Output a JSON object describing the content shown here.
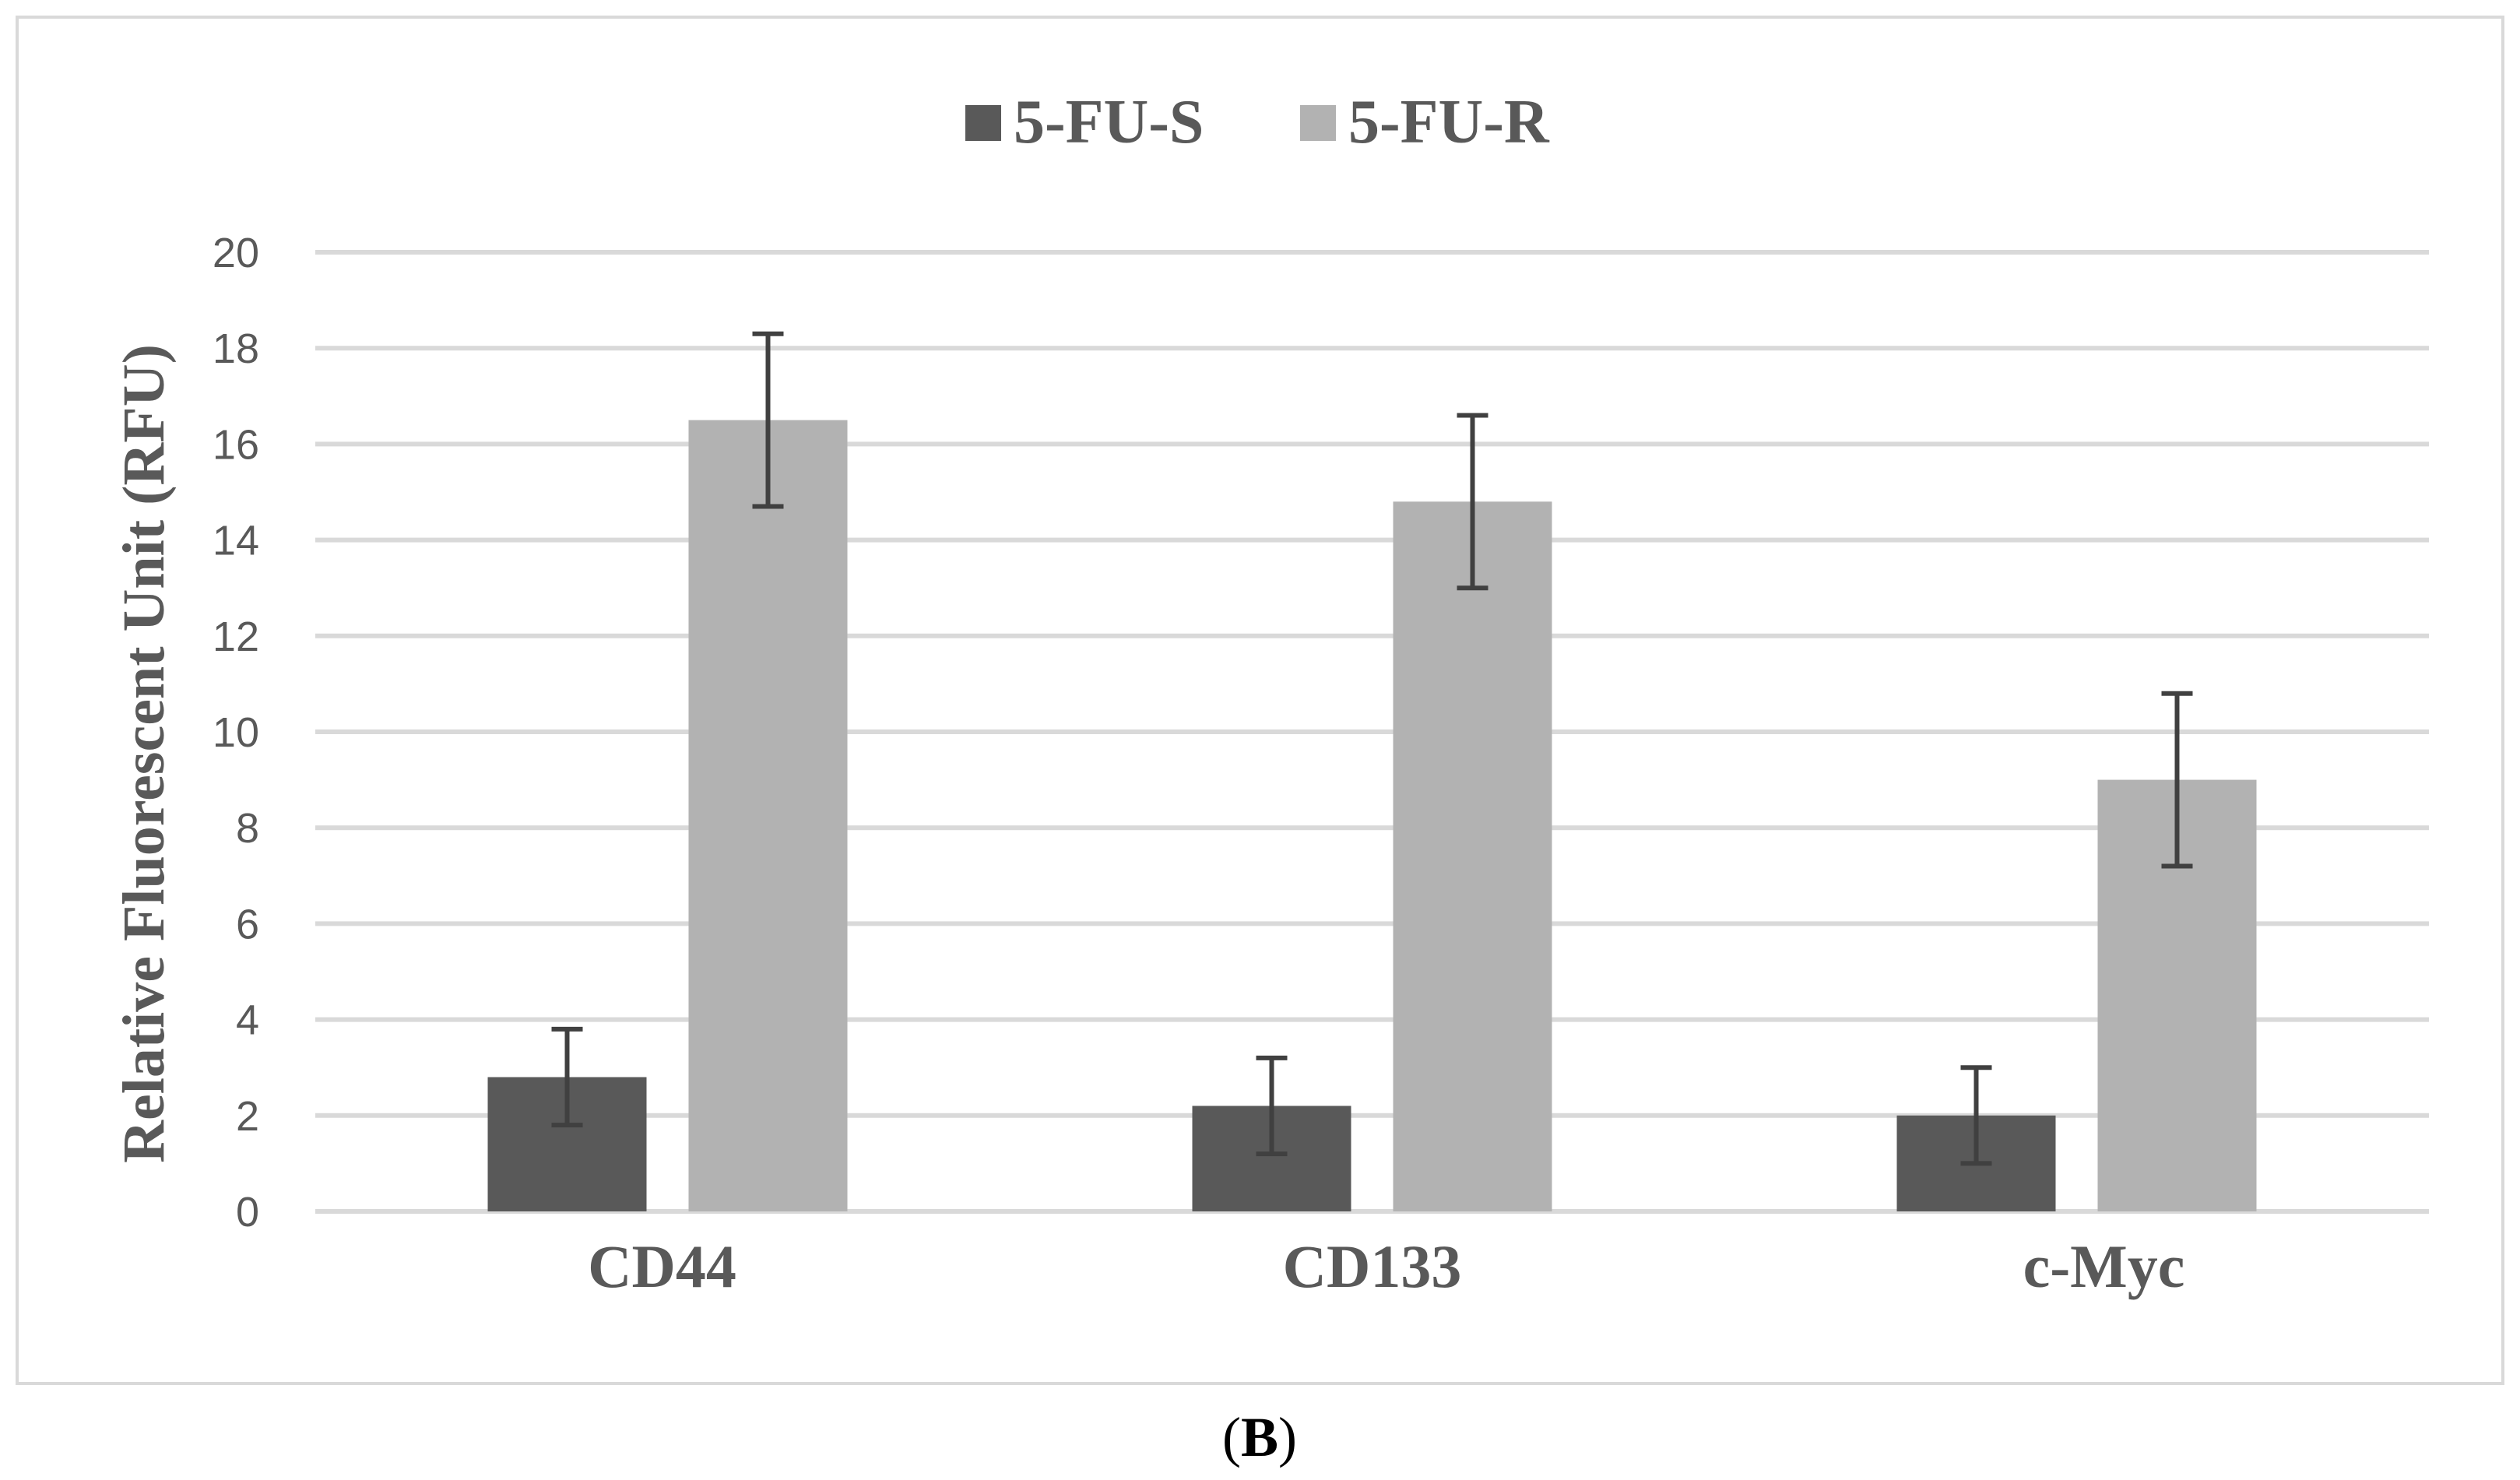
{
  "chart_data": {
    "type": "bar",
    "categories": [
      "CD44",
      "CD133",
      "c-Myc"
    ],
    "series": [
      {
        "name": "5-FU-S",
        "color": "#595959",
        "values": [
          2.8,
          2.2,
          2.0
        ],
        "errors": [
          1.0,
          1.0,
          1.0
        ]
      },
      {
        "name": "5-FU-R",
        "color": "#b2b2b2",
        "values": [
          16.5,
          14.8,
          9.0
        ],
        "errors": [
          1.8,
          1.8,
          1.8
        ]
      }
    ],
    "ylabel": "Relative Fluorescent Unit (RFU)",
    "ylim": [
      0,
      20
    ],
    "yticks": [
      0,
      2,
      4,
      6,
      8,
      10,
      12,
      14,
      16,
      18,
      20
    ],
    "grid": true,
    "legend_position": "top-center"
  },
  "panel": {
    "open": "(",
    "letter": "B",
    "close": ")"
  }
}
